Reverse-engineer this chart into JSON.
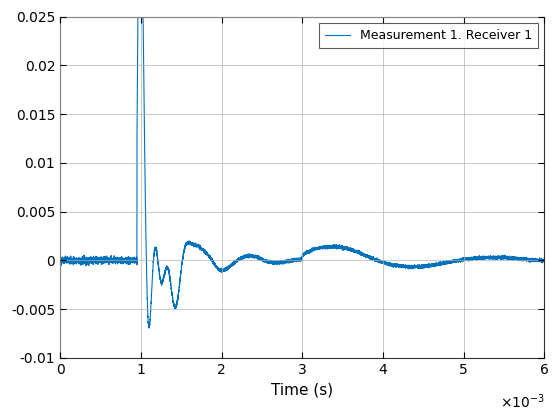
{
  "title": "",
  "xlabel": "Time (s)",
  "ylabel": "",
  "xlim": [
    0,
    0.006
  ],
  "ylim": [
    -0.01,
    0.025
  ],
  "xticks": [
    0,
    0.001,
    0.002,
    0.003,
    0.004,
    0.005,
    0.006
  ],
  "xtick_labels": [
    "0",
    "1",
    "2",
    "3",
    "4",
    "5",
    "6"
  ],
  "yticks": [
    -0.01,
    -0.005,
    0,
    0.005,
    0.01,
    0.015,
    0.02,
    0.025
  ],
  "line_color": "#0072BD",
  "legend_label": "Measurement 1. Receiver 1",
  "background_color": "#ffffff",
  "grid_color": "#b0b0b0"
}
